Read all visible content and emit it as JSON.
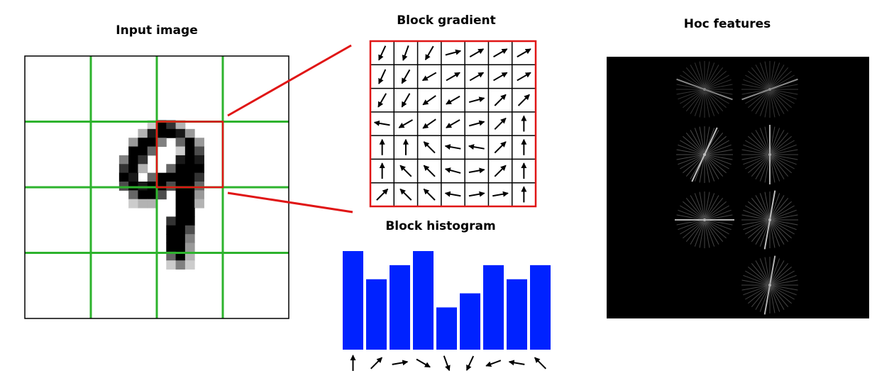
{
  "titles": {
    "input": "Input image",
    "gradient": "Block gradient",
    "histogram": "Block histogram",
    "hoc": "Hoc features"
  },
  "colors": {
    "cell_grid": "#2db32d",
    "block_highlight": "#e01515",
    "histogram_bar": "#0022ff",
    "hoc_background": "#000000"
  },
  "input_image": {
    "digit": "9",
    "cell_grid": "4x4",
    "highlighted_block": {
      "row": 1,
      "col": 2
    }
  },
  "block_gradient": {
    "rows": 7,
    "cols": 7,
    "angles_deg": [
      [
        -115,
        -110,
        -120,
        15,
        30,
        30,
        30
      ],
      [
        -115,
        -120,
        -150,
        30,
        30,
        30,
        30
      ],
      [
        -120,
        -120,
        -145,
        -150,
        15,
        45,
        45
      ],
      [
        170,
        -150,
        -145,
        -150,
        15,
        45,
        90
      ],
      [
        90,
        90,
        135,
        170,
        170,
        45,
        90
      ],
      [
        90,
        135,
        135,
        165,
        10,
        45,
        90
      ],
      [
        45,
        135,
        135,
        170,
        10,
        10,
        90
      ]
    ]
  },
  "chart_data": {
    "type": "bar",
    "title": "Block histogram",
    "categories": [
      "↑",
      "↗",
      "→",
      "↘",
      "↓",
      "↙",
      "←",
      "←",
      "↖"
    ],
    "category_angles_deg": [
      90,
      45,
      10,
      -30,
      -70,
      -115,
      -160,
      170,
      135
    ],
    "values": [
      7,
      5,
      6,
      7,
      3,
      4,
      6,
      5,
      6
    ],
    "ylim": [
      0,
      7
    ]
  },
  "hoc_features": {
    "cells": [
      {
        "row": 0,
        "col": 0,
        "strength": 0.25,
        "dominant_deg": 160
      },
      {
        "row": 0,
        "col": 1,
        "strength": 0.3,
        "dominant_deg": 20
      },
      {
        "row": 1,
        "col": 0,
        "strength": 0.7,
        "dominant_deg": 65
      },
      {
        "row": 1,
        "col": 1,
        "strength": 0.55,
        "dominant_deg": 90
      },
      {
        "row": 2,
        "col": 0,
        "strength": 0.6,
        "dominant_deg": 0
      },
      {
        "row": 2,
        "col": 1,
        "strength": 0.7,
        "dominant_deg": 80
      },
      {
        "row": 3,
        "col": 1,
        "strength": 0.6,
        "dominant_deg": 80
      }
    ]
  }
}
